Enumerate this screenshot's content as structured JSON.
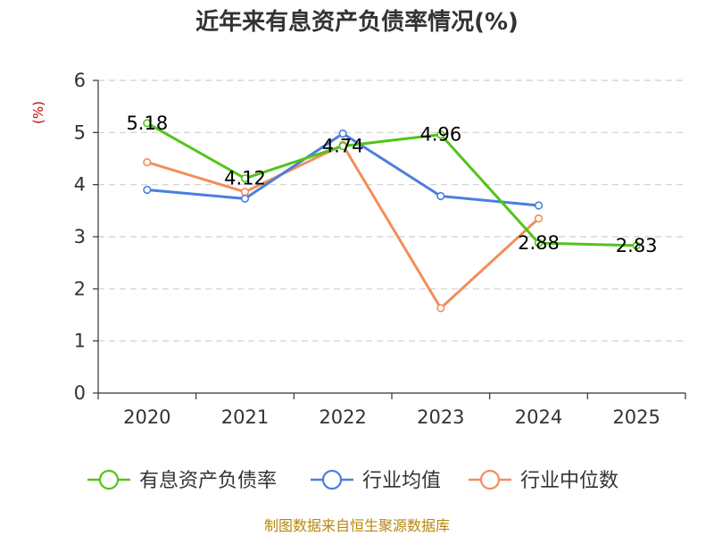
{
  "chart_data": {
    "type": "line",
    "title": "近年来有息资产负债率情况(%)",
    "ylabel": "(%)",
    "xlabel": "",
    "categories": [
      "2020",
      "2021",
      "2022",
      "2023",
      "2024",
      "2025"
    ],
    "ylim": [
      0,
      6
    ],
    "yticks": [
      0,
      1,
      2,
      3,
      4,
      5,
      6
    ],
    "grid": true,
    "legend_position": "bottom",
    "series": [
      {
        "name": "有息资产负债率",
        "color": "#52c41a",
        "values": [
          5.18,
          4.12,
          4.74,
          4.96,
          2.88,
          2.83
        ],
        "data_labels": [
          "5.18",
          "4.12",
          "4.74",
          "4.96",
          "2.88",
          "2.83"
        ]
      },
      {
        "name": "行业均值",
        "color": "#4a7fdc",
        "values": [
          3.9,
          3.73,
          4.98,
          3.78,
          3.6,
          null
        ]
      },
      {
        "name": "行业中位数",
        "color": "#f28e5b",
        "values": [
          4.43,
          3.86,
          4.76,
          1.63,
          3.35,
          null
        ]
      }
    ]
  },
  "footer": {
    "source": "制图数据来自恒生聚源数据库"
  }
}
